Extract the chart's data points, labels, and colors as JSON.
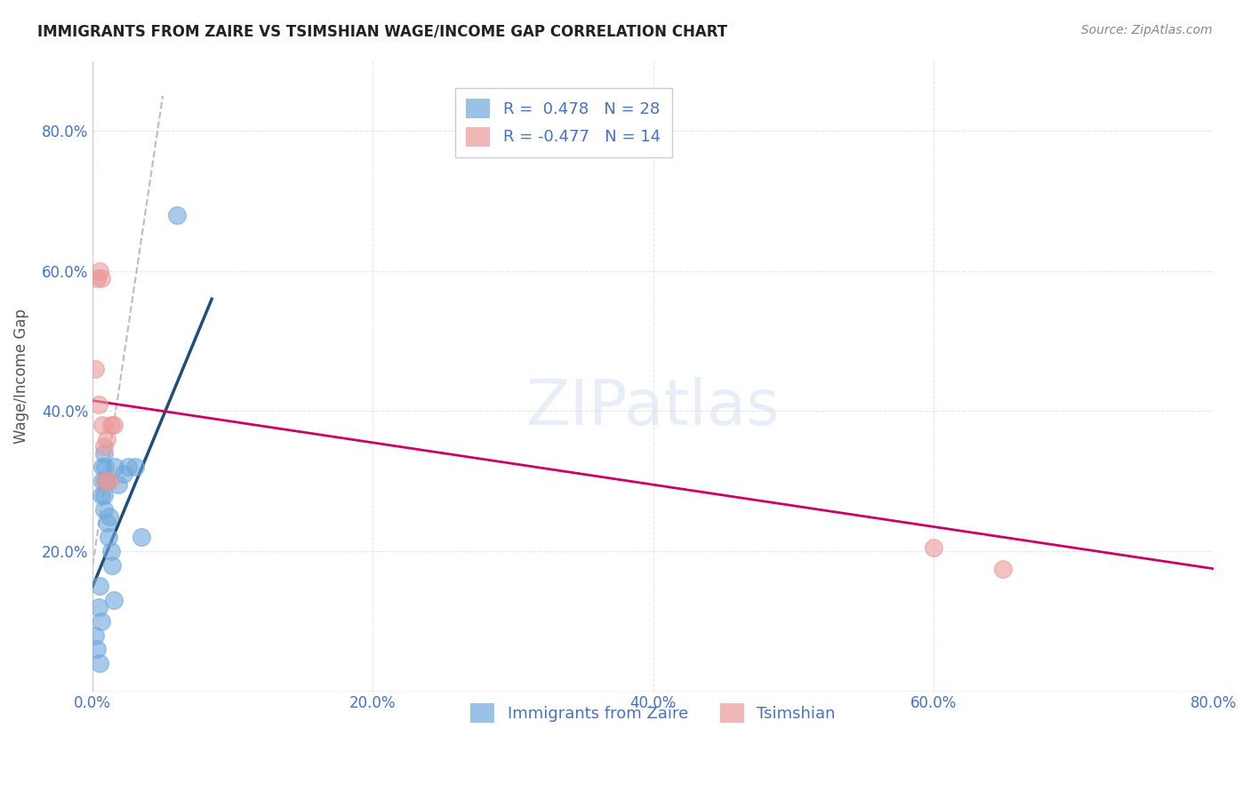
{
  "title": "IMMIGRANTS FROM ZAIRE VS TSIMSHIAN WAGE/INCOME GAP CORRELATION CHART",
  "source": "Source: ZipAtlas.com",
  "xlabel": "",
  "ylabel": "Wage/Income Gap",
  "xlim": [
    0.0,
    0.8
  ],
  "ylim": [
    0.0,
    0.9
  ],
  "xticks": [
    0.0,
    0.2,
    0.4,
    0.6,
    0.8
  ],
  "yticks": [
    0.2,
    0.4,
    0.6,
    0.8
  ],
  "xtick_labels": [
    "0.0%",
    "20.0%",
    "40.0%",
    "60.0%",
    "80.0%"
  ],
  "ytick_labels": [
    "20.0%",
    "40.0%",
    "60.0%",
    "80.0%"
  ],
  "blue_color": "#6fa8dc",
  "pink_color": "#ea9999",
  "blue_line_color": "#1f4e79",
  "pink_line_color": "#cc0066",
  "dashed_line_color": "#a0a0a0",
  "legend_blue_label": "R =  0.478   N = 28",
  "legend_pink_label": "R = -0.477   N = 14",
  "legend_blue_r": "0.478",
  "legend_blue_n": "28",
  "legend_pink_r": "-0.477",
  "legend_pink_n": "14",
  "blue_scatter_x": [
    0.002,
    0.003,
    0.004,
    0.005,
    0.005,
    0.006,
    0.006,
    0.007,
    0.007,
    0.008,
    0.008,
    0.008,
    0.009,
    0.009,
    0.01,
    0.01,
    0.011,
    0.012,
    0.013,
    0.014,
    0.015,
    0.016,
    0.018,
    0.022,
    0.025,
    0.03,
    0.035,
    0.06
  ],
  "blue_scatter_y": [
    0.08,
    0.06,
    0.12,
    0.04,
    0.15,
    0.1,
    0.28,
    0.3,
    0.32,
    0.34,
    0.28,
    0.26,
    0.3,
    0.32,
    0.24,
    0.3,
    0.22,
    0.25,
    0.2,
    0.18,
    0.13,
    0.32,
    0.295,
    0.31,
    0.32,
    0.32,
    0.22,
    0.68
  ],
  "pink_scatter_x": [
    0.002,
    0.003,
    0.004,
    0.005,
    0.006,
    0.007,
    0.008,
    0.009,
    0.01,
    0.012,
    0.013,
    0.015,
    0.6,
    0.65
  ],
  "pink_scatter_y": [
    0.46,
    0.59,
    0.41,
    0.6,
    0.59,
    0.38,
    0.35,
    0.3,
    0.36,
    0.3,
    0.38,
    0.38,
    0.205,
    0.175
  ],
  "blue_trendline_x": [
    0.0,
    0.085
  ],
  "blue_trendline_y": [
    0.15,
    0.56
  ],
  "pink_trendline_x": [
    0.0,
    0.8
  ],
  "pink_trendline_y": [
    0.415,
    0.175
  ],
  "dashed_trendline_x": [
    0.0,
    0.05
  ],
  "dashed_trendline_y": [
    0.18,
    0.85
  ],
  "watermark": "ZIPatlas",
  "background_color": "#ffffff",
  "grid_color": "#e0e0e0"
}
